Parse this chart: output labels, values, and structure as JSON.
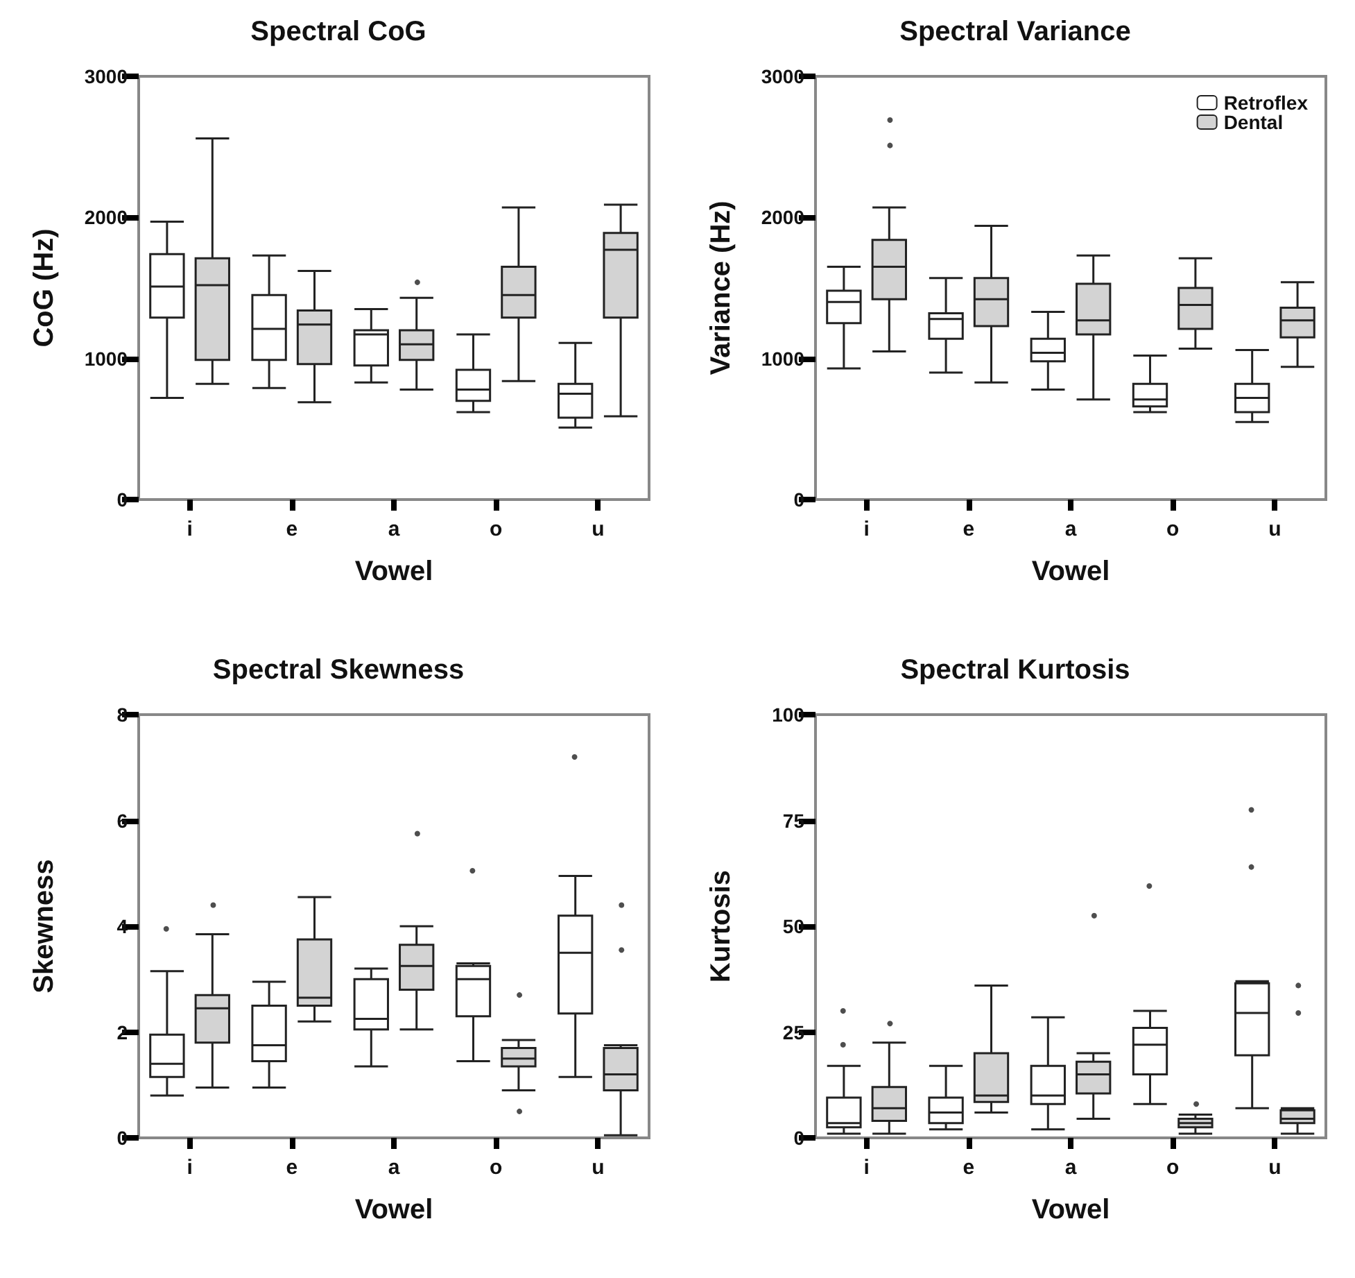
{
  "chart_data": [
    {
      "type": "box",
      "title": "Spectral CoG",
      "xlabel": "Vowel",
      "ylabel": "CoG (Hz)",
      "categories": [
        "i",
        "e",
        "a",
        "o",
        "u"
      ],
      "ylim": [
        0,
        3000
      ],
      "yticks": [
        0,
        1000,
        2000,
        3000
      ],
      "legend": false,
      "series": [
        {
          "color": "#ffffff",
          "boxes": [
            {
              "low": 720,
              "q1": 1290,
              "median": 1510,
              "q3": 1740,
              "high": 1970
            },
            {
              "low": 790,
              "q1": 990,
              "median": 1210,
              "q3": 1450,
              "high": 1730
            },
            {
              "low": 830,
              "q1": 950,
              "median": 1170,
              "q3": 1200,
              "high": 1350
            },
            {
              "low": 620,
              "q1": 700,
              "median": 780,
              "q3": 920,
              "high": 1170
            },
            {
              "low": 510,
              "q1": 580,
              "median": 750,
              "q3": 820,
              "high": 1110
            }
          ]
        },
        {
          "color": "#d3d3d3",
          "boxes": [
            {
              "low": 820,
              "q1": 990,
              "median": 1520,
              "q3": 1710,
              "high": 2560
            },
            {
              "low": 690,
              "q1": 960,
              "median": 1240,
              "q3": 1340,
              "high": 1620
            },
            {
              "low": 780,
              "q1": 990,
              "median": 1100,
              "q3": 1200,
              "high": 1430,
              "outliers": [
                1540
              ]
            },
            {
              "low": 840,
              "q1": 1290,
              "median": 1450,
              "q3": 1650,
              "high": 2070
            },
            {
              "low": 590,
              "q1": 1290,
              "median": 1770,
              "q3": 1890,
              "high": 2090
            }
          ]
        }
      ]
    },
    {
      "type": "box",
      "title": "Spectral Variance",
      "xlabel": "Vowel",
      "ylabel": "Variance (Hz)",
      "categories": [
        "i",
        "e",
        "a",
        "o",
        "u"
      ],
      "ylim": [
        0,
        3000
      ],
      "yticks": [
        0,
        1000,
        2000,
        3000
      ],
      "legend": "top right",
      "series": [
        {
          "name": "Retroflex",
          "color": "#ffffff",
          "boxes": [
            {
              "low": 930,
              "q1": 1250,
              "median": 1400,
              "q3": 1480,
              "high": 1650
            },
            {
              "low": 900,
              "q1": 1140,
              "median": 1280,
              "q3": 1320,
              "high": 1570
            },
            {
              "low": 780,
              "q1": 980,
              "median": 1040,
              "q3": 1140,
              "high": 1330
            },
            {
              "low": 620,
              "q1": 660,
              "median": 710,
              "q3": 820,
              "high": 1020
            },
            {
              "low": 550,
              "q1": 620,
              "median": 720,
              "q3": 820,
              "high": 1060
            }
          ]
        },
        {
          "name": "Dental",
          "color": "#d3d3d3",
          "boxes": [
            {
              "low": 1050,
              "q1": 1420,
              "median": 1650,
              "q3": 1840,
              "high": 2070,
              "outliers": [
                2510,
                2690
              ]
            },
            {
              "low": 830,
              "q1": 1230,
              "median": 1420,
              "q3": 1570,
              "high": 1940
            },
            {
              "low": 710,
              "q1": 1170,
              "median": 1270,
              "q3": 1530,
              "high": 1730
            },
            {
              "low": 1070,
              "q1": 1210,
              "median": 1380,
              "q3": 1500,
              "high": 1710
            },
            {
              "low": 940,
              "q1": 1150,
              "median": 1270,
              "q3": 1360,
              "high": 1540
            }
          ]
        }
      ]
    },
    {
      "type": "box",
      "title": "Spectral Skewness",
      "xlabel": "Vowel",
      "ylabel": "Skewness",
      "categories": [
        "i",
        "e",
        "a",
        "o",
        "u"
      ],
      "ylim": [
        0,
        8
      ],
      "yticks": [
        0,
        2,
        4,
        6,
        8
      ],
      "legend": false,
      "series": [
        {
          "color": "#ffffff",
          "boxes": [
            {
              "low": 0.8,
              "q1": 1.15,
              "median": 1.4,
              "q3": 1.95,
              "high": 3.15,
              "outliers": [
                3.95
              ]
            },
            {
              "low": 0.95,
              "q1": 1.45,
              "median": 1.75,
              "q3": 2.5,
              "high": 2.95
            },
            {
              "low": 1.35,
              "q1": 2.05,
              "median": 2.25,
              "q3": 3.0,
              "high": 3.2
            },
            {
              "low": 1.45,
              "q1": 2.3,
              "median": 3.0,
              "q3": 3.25,
              "high": 3.3,
              "outliers": [
                5.05
              ]
            },
            {
              "low": 1.15,
              "q1": 2.35,
              "median": 3.5,
              "q3": 4.2,
              "high": 4.95,
              "outliers": [
                7.2
              ]
            }
          ]
        },
        {
          "color": "#d3d3d3",
          "boxes": [
            {
              "low": 0.95,
              "q1": 1.8,
              "median": 2.45,
              "q3": 2.7,
              "high": 3.85,
              "outliers": [
                4.4
              ]
            },
            {
              "low": 2.2,
              "q1": 2.5,
              "median": 2.65,
              "q3": 3.75,
              "high": 4.55
            },
            {
              "low": 2.05,
              "q1": 2.8,
              "median": 3.25,
              "q3": 3.65,
              "high": 4.0,
              "outliers": [
                5.75
              ]
            },
            {
              "low": 0.9,
              "q1": 1.35,
              "median": 1.5,
              "q3": 1.7,
              "high": 1.85,
              "outliers": [
                2.7,
                0.5
              ]
            },
            {
              "low": 0.05,
              "q1": 0.9,
              "median": 1.2,
              "q3": 1.7,
              "high": 1.75,
              "outliers": [
                4.4,
                3.55
              ]
            }
          ]
        }
      ]
    },
    {
      "type": "box",
      "title": "Spectral Kurtosis",
      "xlabel": "Vowel",
      "ylabel": "Kurtosis",
      "categories": [
        "i",
        "e",
        "a",
        "o",
        "u"
      ],
      "ylim": [
        0,
        100
      ],
      "yticks": [
        0,
        25,
        50,
        75,
        100
      ],
      "legend": false,
      "series": [
        {
          "color": "#ffffff",
          "boxes": [
            {
              "low": 1,
              "q1": 2.5,
              "median": 3.5,
              "q3": 9.5,
              "high": 17,
              "outliers": [
                30,
                22
              ]
            },
            {
              "low": 2,
              "q1": 3.5,
              "median": 6,
              "q3": 9.5,
              "high": 17
            },
            {
              "low": 2,
              "q1": 8,
              "median": 10,
              "q3": 17,
              "high": 28.5
            },
            {
              "low": 8,
              "q1": 15,
              "median": 22,
              "q3": 26,
              "high": 30,
              "outliers": [
                59.5
              ]
            },
            {
              "low": 7,
              "q1": 19.5,
              "median": 29.5,
              "q3": 36.5,
              "high": 37,
              "outliers": [
                77.5,
                64
              ]
            }
          ]
        },
        {
          "color": "#d3d3d3",
          "boxes": [
            {
              "low": 1,
              "q1": 4,
              "median": 7,
              "q3": 12,
              "high": 22.5,
              "outliers": [
                27
              ]
            },
            {
              "low": 6,
              "q1": 8.5,
              "median": 10,
              "q3": 20,
              "high": 36
            },
            {
              "low": 4.5,
              "q1": 10.5,
              "median": 15,
              "q3": 18,
              "high": 20,
              "outliers": [
                52.5
              ]
            },
            {
              "low": 1,
              "q1": 2.5,
              "median": 3.5,
              "q3": 4.5,
              "high": 5.5,
              "outliers": [
                8
              ]
            },
            {
              "low": 1,
              "q1": 3.5,
              "median": 4.5,
              "q3": 6.5,
              "high": 7,
              "outliers": [
                36,
                29.5
              ]
            }
          ]
        }
      ]
    }
  ]
}
